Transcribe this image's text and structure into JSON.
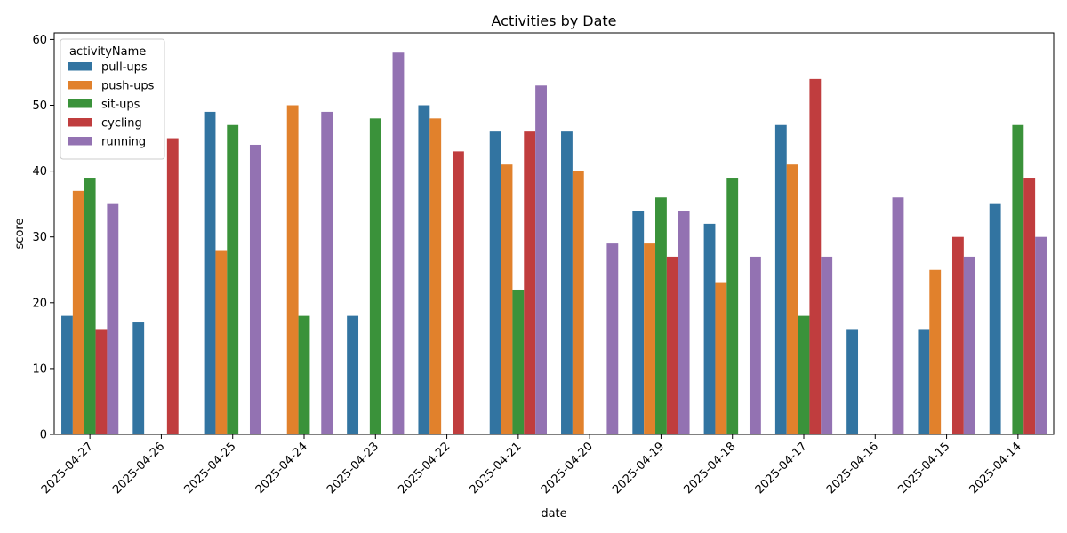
{
  "chart_data": {
    "type": "bar",
    "title": "Activities by Date",
    "xlabel": "date",
    "ylabel": "score",
    "ylim": [
      0,
      61
    ],
    "yticks": [
      0,
      10,
      20,
      30,
      40,
      50,
      60
    ],
    "legend": {
      "title": "activityName",
      "placement": "top-left"
    },
    "categories": [
      "2025-04-27",
      "2025-04-26",
      "2025-04-25",
      "2025-04-24",
      "2025-04-23",
      "2025-04-22",
      "2025-04-21",
      "2025-04-20",
      "2025-04-19",
      "2025-04-18",
      "2025-04-17",
      "2025-04-16",
      "2025-04-15",
      "2025-04-14"
    ],
    "series": [
      {
        "name": "pull-ups",
        "color": "#3274a1",
        "values": [
          18,
          17,
          49,
          null,
          18,
          50,
          46,
          46,
          34,
          32,
          47,
          16,
          16,
          35
        ]
      },
      {
        "name": "push-ups",
        "color": "#e1812c",
        "values": [
          37,
          null,
          28,
          50,
          null,
          48,
          41,
          40,
          29,
          23,
          41,
          null,
          25,
          null
        ]
      },
      {
        "name": "sit-ups",
        "color": "#3a923a",
        "values": [
          39,
          null,
          47,
          18,
          48,
          null,
          22,
          null,
          36,
          39,
          18,
          null,
          null,
          47
        ]
      },
      {
        "name": "cycling",
        "color": "#c03d3e",
        "values": [
          16,
          45,
          null,
          null,
          null,
          43,
          46,
          null,
          27,
          null,
          54,
          null,
          30,
          39
        ]
      },
      {
        "name": "running",
        "color": "#9372b2",
        "values": [
          35,
          null,
          44,
          49,
          58,
          null,
          53,
          29,
          34,
          27,
          27,
          36,
          27,
          30
        ]
      }
    ]
  }
}
